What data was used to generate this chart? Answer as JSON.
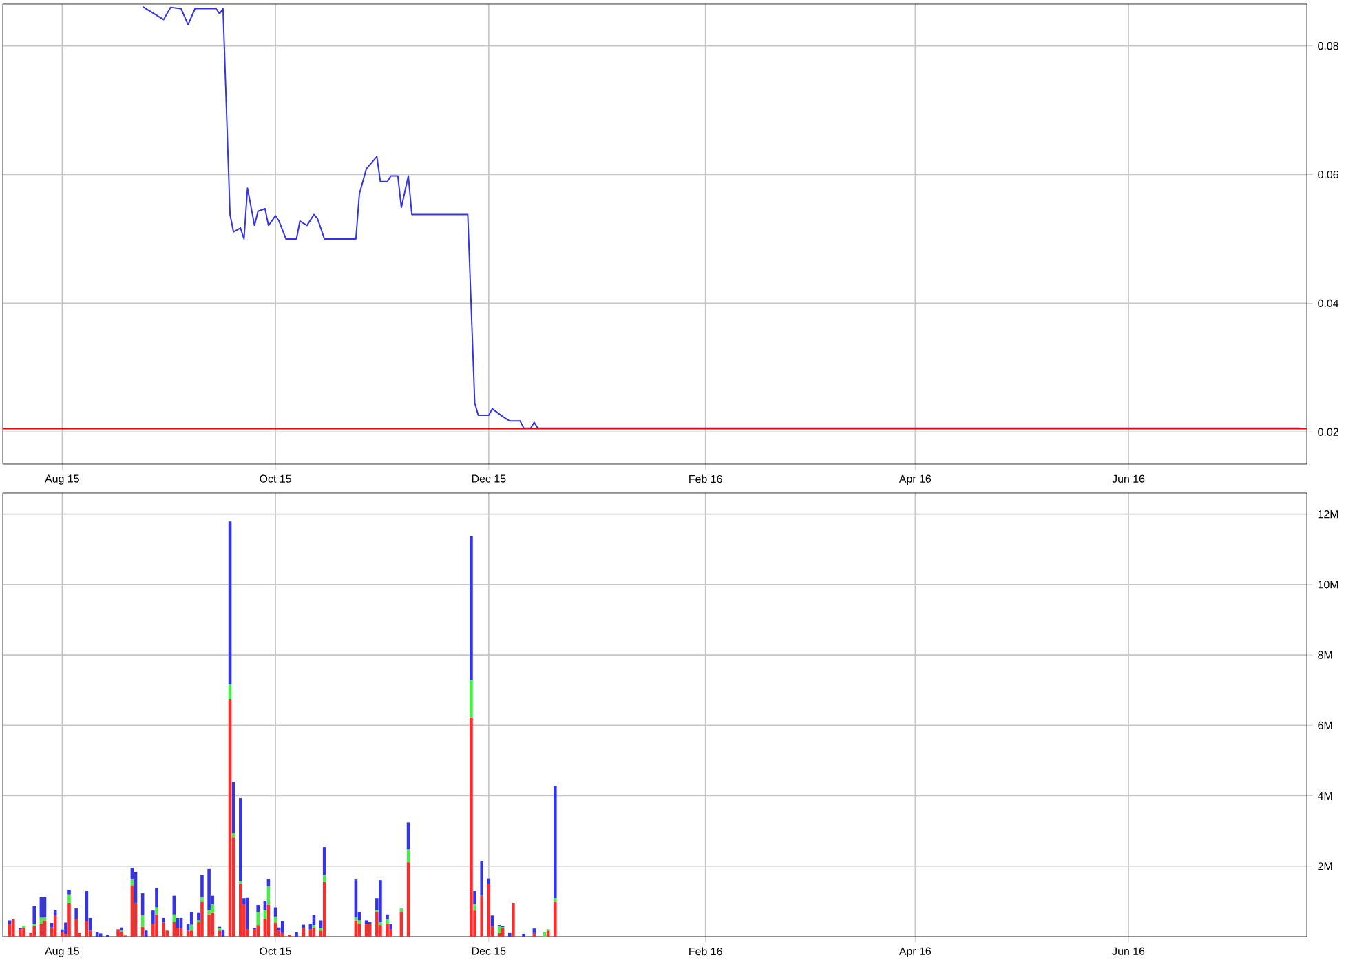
{
  "chart_data": [
    {
      "type": "line",
      "x": [
        "2015-08-24",
        "2015-08-30",
        "2015-09-01",
        "2015-09-04",
        "2015-09-06",
        "2015-09-08",
        "2015-09-14",
        "2015-09-15",
        "2015-09-16",
        "2015-09-18",
        "2015-09-19",
        "2015-09-21",
        "2015-09-22",
        "2015-09-23",
        "2015-09-25",
        "2015-09-26",
        "2015-09-28",
        "2015-09-29",
        "2015-10-01",
        "2015-10-02",
        "2015-10-04",
        "2015-10-07",
        "2015-10-08",
        "2015-10-10",
        "2015-10-12",
        "2015-10-13",
        "2015-10-15",
        "2015-10-24",
        "2015-10-25",
        "2015-10-27",
        "2015-10-30",
        "2015-10-31",
        "2015-11-02",
        "2015-11-03",
        "2015-11-05",
        "2015-11-06",
        "2015-11-08",
        "2015-11-09",
        "2015-11-25",
        "2015-11-27",
        "2015-11-28",
        "2015-12-01",
        "2015-12-02",
        "2015-12-05",
        "2015-12-07",
        "2015-12-10",
        "2015-12-11",
        "2015-12-13",
        "2015-12-14",
        "2015-12-15",
        "2016-07-20"
      ],
      "values": [
        0.0861,
        0.0841,
        0.086,
        0.0858,
        0.0833,
        0.0858,
        0.0858,
        0.085,
        0.0858,
        0.0538,
        0.0511,
        0.0517,
        0.05,
        0.0579,
        0.0521,
        0.0543,
        0.0547,
        0.0521,
        0.0536,
        0.0528,
        0.05,
        0.05,
        0.0528,
        0.0521,
        0.0538,
        0.0532,
        0.05,
        0.05,
        0.057,
        0.0609,
        0.0628,
        0.0589,
        0.0589,
        0.0598,
        0.0598,
        0.0549,
        0.0598,
        0.0538,
        0.0538,
        0.0245,
        0.0226,
        0.0226,
        0.0236,
        0.0224,
        0.0217,
        0.0217,
        0.0206,
        0.0206,
        0.0215,
        0.0206,
        0.0206
      ],
      "color": "#3333ee",
      "xlim": [
        "2015-07-15",
        "2016-07-22"
      ],
      "xticks": [
        {
          "value": "2015-08-01",
          "label": "Aug 15"
        },
        {
          "value": "2015-10-01",
          "label": "Oct 15"
        },
        {
          "value": "2015-12-01",
          "label": "Dec 15"
        },
        {
          "value": "2016-02-01",
          "label": "Feb 16"
        },
        {
          "value": "2016-04-01",
          "label": "Apr 16"
        },
        {
          "value": "2016-06-01",
          "label": "Jun 16"
        }
      ],
      "ylim": [
        0.015,
        0.0865
      ],
      "yticks": [
        0.02,
        0.04,
        0.06,
        0.08
      ],
      "grid": true,
      "ref_lines": [
        {
          "axis": "y",
          "value": 0.0205,
          "color": "#ff0000"
        }
      ]
    },
    {
      "type": "bar",
      "stacked": true,
      "x": [
        "2015-07-17",
        "2015-07-18",
        "2015-07-20",
        "2015-07-21",
        "2015-07-23",
        "2015-07-24",
        "2015-07-26",
        "2015-07-27",
        "2015-07-29",
        "2015-07-30",
        "2015-08-01",
        "2015-08-02",
        "2015-08-03",
        "2015-08-05",
        "2015-08-06",
        "2015-08-08",
        "2015-08-09",
        "2015-08-11",
        "2015-08-12",
        "2015-08-14",
        "2015-08-17",
        "2015-08-18",
        "2015-08-19",
        "2015-08-21",
        "2015-08-22",
        "2015-08-24",
        "2015-08-25",
        "2015-08-27",
        "2015-08-28",
        "2015-08-30",
        "2015-08-31",
        "2015-09-02",
        "2015-09-03",
        "2015-09-04",
        "2015-09-06",
        "2015-09-07",
        "2015-09-09",
        "2015-09-10",
        "2015-09-12",
        "2015-09-13",
        "2015-09-15",
        "2015-09-16",
        "2015-09-18",
        "2015-09-19",
        "2015-09-21",
        "2015-09-22",
        "2015-09-23",
        "2015-09-25",
        "2015-09-26",
        "2015-09-28",
        "2015-09-29",
        "2015-10-01",
        "2015-10-02",
        "2015-10-03",
        "2015-10-05",
        "2015-10-07",
        "2015-10-09",
        "2015-10-11",
        "2015-10-12",
        "2015-10-14",
        "2015-10-15",
        "2015-10-24",
        "2015-10-25",
        "2015-10-27",
        "2015-10-28",
        "2015-10-30",
        "2015-10-31",
        "2015-11-02",
        "2015-11-03",
        "2015-11-06",
        "2015-11-08",
        "2015-11-26",
        "2015-11-27",
        "2015-11-29",
        "2015-12-01",
        "2015-12-02",
        "2015-12-04",
        "2015-12-05",
        "2015-12-07",
        "2015-12-08",
        "2015-12-11",
        "2015-12-14",
        "2015-12-17",
        "2015-12-18",
        "2015-12-20"
      ],
      "series": [
        {
          "color": "#ff2a2a",
          "values": [
            0.37,
            0.49,
            0.2,
            0.24,
            0.1,
            0.3,
            0.37,
            0.46,
            0.26,
            0.59,
            0.13,
            0.07,
            0.96,
            0.5,
            0.1,
            0.43,
            0.17,
            null,
            null,
            null,
            0.21,
            0.13,
            0.03,
            1.46,
            0.96,
            0.28,
            null,
            0.37,
            0.63,
            0.4,
            0.17,
            0.41,
            0.24,
            0.24,
            0.17,
            0.17,
            0.41,
            0.99,
            0.63,
            0.67,
            0.17,
            null,
            6.75,
            2.81,
            1.49,
            0.92,
            0.2,
            0.2,
            0.33,
            0.5,
            0.9,
            0.4,
            0.17,
            0.1,
            0.05,
            null,
            0.24,
            0.2,
            0.24,
            0.17,
            1.55,
            0.46,
            0.37,
            0.37,
            0.37,
            0.7,
            0.33,
            0.37,
            0.2,
            0.7,
            2.11,
            6.23,
            0.74,
            1.16,
            1.49,
            0.3,
            0.1,
            0.24,
            null,
            0.96,
            null,
            0.1,
            null,
            0.17,
            0.99
          ]
        },
        {
          "color": "#44ee44",
          "values": [
            null,
            null,
            null,
            0.07,
            null,
            0.07,
            0.17,
            0.08,
            null,
            null,
            null,
            null,
            0.24,
            null,
            null,
            null,
            null,
            null,
            null,
            null,
            null,
            0.04,
            null,
            0.16,
            null,
            0.33,
            null,
            null,
            0.2,
            null,
            null,
            0.22,
            null,
            null,
            null,
            0.17,
            0.05,
            0.13,
            0.13,
            0.25,
            0.07,
            null,
            0.43,
            0.13,
            0.07,
            null,
            null,
            null,
            0.37,
            0.26,
            0.53,
            0.17,
            null,
            null,
            null,
            null,
            null,
            null,
            0.09,
            0.07,
            0.2,
            0.08,
            0.09,
            null,
            null,
            0.05,
            0.08,
            0.13,
            null,
            0.1,
            0.37,
            1.05,
            0.18,
            null,
            null,
            null,
            0.2,
            0.03,
            null,
            null,
            null,
            null,
            0.13,
            0.04,
            0.1
          ]
        },
        {
          "color": "#3333ee",
          "values": [
            0.09,
            null,
            0.04,
            null,
            null,
            0.5,
            0.58,
            0.58,
            0.13,
            0.17,
            0.07,
            0.33,
            0.13,
            0.3,
            null,
            0.86,
            0.36,
            0.13,
            0.09,
            0.04,
            null,
            0.09,
            null,
            0.33,
            0.88,
            0.62,
            0.17,
            0.37,
            0.54,
            0.13,
            null,
            0.53,
            0.29,
            0.29,
            0.2,
            0.36,
            0.21,
            0.63,
            1.16,
            0.24,
            0.04,
            0.2,
            4.61,
            1.45,
            2.37,
            0.17,
            0.9,
            0.04,
            0.2,
            0.25,
            0.2,
            0.26,
            0.09,
            0.33,
            null,
            0.13,
            0.1,
            0.17,
            0.28,
            0.22,
            0.79,
            1.08,
            0.24,
            0.09,
            0.04,
            0.34,
            1.19,
            0.13,
            0.16,
            null,
            0.76,
            4.09,
            0.37,
            0.99,
            0.16,
            0.3,
            0.03,
            0.04,
            0.1,
            null,
            0.08,
            0.13,
            null,
            null,
            3.19
          ]
        }
      ],
      "xlim": [
        "2015-07-15",
        "2016-07-22"
      ],
      "xticks": [
        {
          "value": "2015-08-01",
          "label": "Aug 15"
        },
        {
          "value": "2015-10-01",
          "label": "Oct 15"
        },
        {
          "value": "2015-12-01",
          "label": "Dec 15"
        },
        {
          "value": "2016-02-01",
          "label": "Feb 16"
        },
        {
          "value": "2016-04-01",
          "label": "Apr 16"
        },
        {
          "value": "2016-06-01",
          "label": "Jun 16"
        }
      ],
      "ylim": [
        0,
        12.6
      ],
      "yticks": [
        {
          "value": 2,
          "label": "2M"
        },
        {
          "value": 4,
          "label": "4M"
        },
        {
          "value": 6,
          "label": "6M"
        },
        {
          "value": 8,
          "label": "8M"
        },
        {
          "value": 10,
          "label": "10M"
        },
        {
          "value": 12,
          "label": "12M"
        }
      ],
      "grid": true
    }
  ]
}
